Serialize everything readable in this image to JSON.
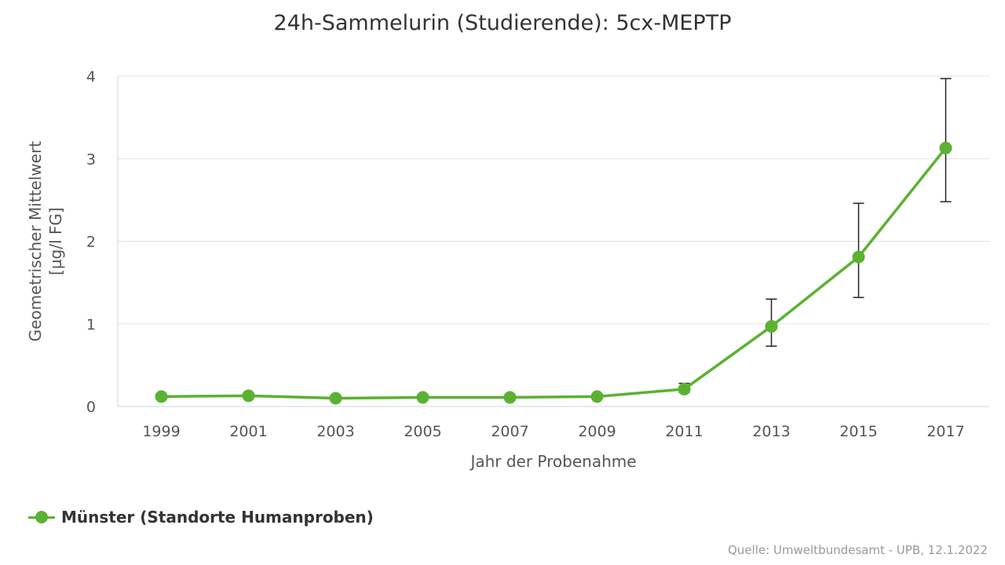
{
  "chart_data": {
    "type": "line",
    "title": "24h-Sammelurin (Studierende): 5cx-MEPTP",
    "xlabel": "Jahr der Probenahme",
    "ylabel_lines": [
      "Geometrischer Mittelwert",
      "[µg/l FG]"
    ],
    "categories": [
      "1999",
      "2001",
      "2003",
      "2005",
      "2007",
      "2009",
      "2011",
      "2013",
      "2015",
      "2017"
    ],
    "yticks": [
      "0",
      "1",
      "2",
      "3",
      "4"
    ],
    "ylim": [
      0,
      4
    ],
    "grid": true,
    "legend_position": "bottom-left",
    "series": [
      {
        "name": "Münster (Standorte Humanproben)",
        "color": "#5bb131",
        "values": [
          0.12,
          0.13,
          0.1,
          0.11,
          0.11,
          0.12,
          0.21,
          0.97,
          1.81,
          3.13
        ],
        "error_low": [
          0.11,
          0.11,
          0.09,
          0.1,
          0.1,
          0.11,
          0.17,
          0.73,
          1.32,
          2.48
        ],
        "error_high": [
          0.13,
          0.16,
          0.11,
          0.12,
          0.12,
          0.13,
          0.28,
          1.3,
          2.46,
          3.97
        ]
      }
    ]
  },
  "credits": "Quelle: Umweltbundesamt - UPB, 12.1.2022"
}
